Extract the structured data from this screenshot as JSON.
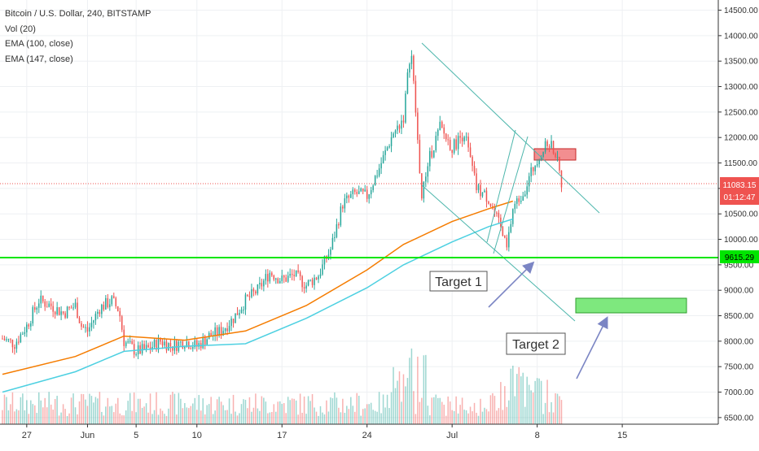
{
  "legend": {
    "symbol": "Bitcoin / U.S. Dollar, 240, BITSTAMP",
    "volume": "Vol (20)",
    "ema_fast": "EMA (100, close)",
    "ema_slow": "EMA (147, close)"
  },
  "price_badges": {
    "last_price": "11083.15",
    "countdown": "01:12:47",
    "support": "9615.29"
  },
  "annotations": {
    "target1": "Target 1",
    "target2": "Target 2"
  },
  "colors": {
    "up": "#26a69a",
    "down": "#ef5350",
    "ema_fast": "#f57c00",
    "ema_slow": "#4dd0e1",
    "support": "#00e600",
    "trendline": "#4db6ac",
    "arrow": "#7b85c4",
    "grid": "#eef0f3"
  },
  "chart_data": {
    "type": "candlestick",
    "symbol": "Bitcoin / U.S. Dollar",
    "interval": "240",
    "exchange": "BITSTAMP",
    "x_tick_labels": [
      "27",
      "Jun",
      "5",
      "10",
      "17",
      "24",
      "Jul",
      "8",
      "15"
    ],
    "x_ticks_day": [
      -4,
      1,
      5,
      10,
      17,
      24,
      31,
      38,
      45
    ],
    "xlim_day": [
      -6.2,
      52.9
    ],
    "y_tick_labels": [
      "6500.00",
      "7000.00",
      "7500.00",
      "8000.00",
      "8500.00",
      "9000.00",
      "9500.00",
      "10000.00",
      "10500.00",
      "11000.00",
      "11500.00",
      "12000.00",
      "12500.00",
      "13000.00",
      "13500.00",
      "14000.00",
      "14500.00"
    ],
    "ylim": [
      6370,
      14700
    ],
    "last_price": 11083.15,
    "support_level": 9615.29,
    "ema_100": [
      [
        -6,
        7350
      ],
      [
        0,
        7700
      ],
      [
        4,
        8100
      ],
      [
        9,
        8020
      ],
      [
        14,
        8200
      ],
      [
        19,
        8700
      ],
      [
        24,
        9400
      ],
      [
        27,
        9900
      ],
      [
        31,
        10350
      ],
      [
        34,
        10600
      ],
      [
        36,
        10750
      ]
    ],
    "ema_147": [
      [
        -6,
        7000
      ],
      [
        0,
        7400
      ],
      [
        4,
        7800
      ],
      [
        9,
        7900
      ],
      [
        14,
        7950
      ],
      [
        19,
        8450
      ],
      [
        24,
        9050
      ],
      [
        27,
        9500
      ],
      [
        31,
        9950
      ],
      [
        34,
        10250
      ],
      [
        36,
        10400
      ]
    ],
    "price_path": [
      [
        -6,
        8050
      ],
      [
        -5,
        7950
      ],
      [
        -4,
        8300
      ],
      [
        -3,
        8800
      ],
      [
        -2,
        8700
      ],
      [
        -1,
        8550
      ],
      [
        0,
        8700
      ],
      [
        0.5,
        8300
      ],
      [
        1,
        8200
      ],
      [
        2,
        8650
      ],
      [
        3,
        8800
      ],
      [
        3.6,
        8600
      ],
      [
        4,
        8000
      ],
      [
        5,
        7800
      ],
      [
        6,
        7850
      ],
      [
        7,
        8000
      ],
      [
        8,
        7900
      ],
      [
        9,
        8000
      ],
      [
        10,
        7900
      ],
      [
        11,
        8100
      ],
      [
        12,
        8200
      ],
      [
        13,
        8450
      ],
      [
        14,
        8800
      ],
      [
        15,
        9000
      ],
      [
        16,
        9350
      ],
      [
        17,
        9200
      ],
      [
        18,
        9300
      ],
      [
        19,
        9100
      ],
      [
        20,
        9300
      ],
      [
        21,
        9800
      ],
      [
        22,
        10700
      ],
      [
        23,
        10900
      ],
      [
        24,
        10850
      ],
      [
        25,
        11400
      ],
      [
        26,
        12000
      ],
      [
        27,
        12400
      ],
      [
        27.6,
        13800
      ],
      [
        28,
        12500
      ],
      [
        28.5,
        10800
      ],
      [
        29,
        11500
      ],
      [
        30,
        12200
      ],
      [
        31,
        11800
      ],
      [
        32,
        12100
      ],
      [
        33,
        11000
      ],
      [
        34,
        10800
      ],
      [
        35,
        10200
      ],
      [
        35.5,
        9800
      ],
      [
        36,
        10600
      ],
      [
        37,
        11000
      ],
      [
        38,
        11600
      ],
      [
        39,
        11900
      ],
      [
        39.5,
        11700
      ],
      [
        40,
        11100
      ]
    ],
    "volume_note": "Volume histogram along bottom (Vol 20), colored by candle direction"
  }
}
